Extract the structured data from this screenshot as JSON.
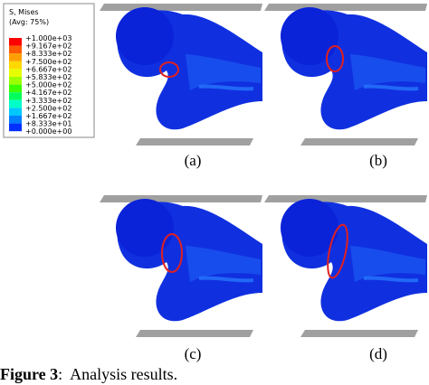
{
  "legend": {
    "title": "S, Mises",
    "subtitle": "(Avg: 75%)",
    "labels": [
      "+1.000e+03",
      "+9.167e+02",
      "+8.333e+02",
      "+7.500e+02",
      "+6.667e+02",
      "+5.833e+02",
      "+5.000e+02",
      "+4.167e+02",
      "+3.333e+02",
      "+2.500e+02",
      "+1.667e+02",
      "+8.333e+01",
      "+0.000e+00"
    ],
    "band_colors": [
      "#ff0000",
      "#ff5a00",
      "#ffa000",
      "#ffd800",
      "#e6ff00",
      "#9cff00",
      "#3cff00",
      "#00ff5a",
      "#00ffc8",
      "#00c8ff",
      "#0080ff",
      "#0030ff"
    ]
  },
  "panels": [
    {
      "label": "(a)"
    },
    {
      "label": "(b)"
    },
    {
      "label": "(c)"
    },
    {
      "label": "(d)"
    }
  ],
  "caption": {
    "label": "Figure 3",
    "text": ":  Analysis results."
  }
}
